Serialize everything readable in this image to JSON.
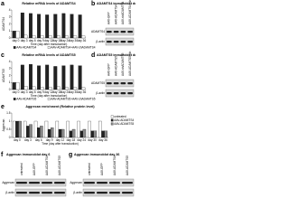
{
  "chart_data": [
    {
      "type": "bar",
      "panel_label": "a",
      "title": "Relative mRNA levels of ADAMTS4",
      "y_label": "ADAMTS4",
      "x_label": "Time (day after transduction)",
      "categories": [
        "day 0",
        "day 3",
        "day 6",
        "day 9",
        "day 12",
        "day 18",
        "day 24",
        "day 30",
        "day 36"
      ],
      "series": [
        {
          "name": "AAV-ADAMTS4",
          "color": "#222222",
          "values": [
            1,
            3.6,
            3.5,
            3.4,
            3.3,
            3.4,
            3.5,
            3.4,
            3.3
          ]
        },
        {
          "name": "AAV-ADAMTS4+AAV-shADAMTS4",
          "color": "#ffffff",
          "values": [
            1,
            0.4,
            0.3,
            0.3,
            0.3,
            0.3,
            0.3,
            0.3,
            0.3
          ]
        }
      ],
      "ylim": [
        0,
        4
      ],
      "yticks": [
        0,
        1,
        2,
        3,
        4
      ]
    },
    {
      "type": "bar",
      "panel_label": "c",
      "title": "Relative mRNA levels of ADAMTS5",
      "y_label": "ADAMTS5",
      "x_label": "Time (day after transduction)",
      "categories": [
        "day 0",
        "day 3",
        "day 6",
        "day 9",
        "day 12",
        "day 18",
        "day 24",
        "day 30",
        "day 36"
      ],
      "series": [
        {
          "name": "AAV-ADAMTS5",
          "color": "#222222",
          "values": [
            1,
            3.5,
            3.6,
            3.4,
            3.5,
            3.3,
            3.4,
            3.5,
            3.4
          ]
        },
        {
          "name": "AAV-ADAMTS5+AAV-shADAMTS5",
          "color": "#ffffff",
          "values": [
            1,
            0.5,
            0.4,
            0.3,
            0.3,
            0.4,
            0.3,
            0.3,
            0.3
          ]
        }
      ],
      "ylim": [
        0,
        4
      ],
      "yticks": [
        0,
        1,
        2,
        3,
        4
      ]
    },
    {
      "type": "bar",
      "panel_label": "e",
      "title": "Aggrecan enrichment (Relative protein level)",
      "y_label": "Aggrecan",
      "x_label": "Time (day after transduction)",
      "categories": [
        "day 0",
        "day 3",
        "day 6",
        "day 9",
        "day 12",
        "day 18",
        "day 24",
        "day 30",
        "day 36"
      ],
      "series": [
        {
          "name": "untreated",
          "color": "#ffffff",
          "values": [
            1,
            1,
            1,
            1,
            1,
            1,
            1,
            1,
            1
          ]
        },
        {
          "name": "AAV-ADAMTS4",
          "color": "#222222",
          "values": [
            1,
            0.7,
            0.6,
            0.5,
            0.5,
            0.4,
            0.4,
            0.4,
            0.4
          ]
        },
        {
          "name": "AAV-ADAMTS5",
          "color": "#888888",
          "values": [
            1,
            0.8,
            0.7,
            0.6,
            0.5,
            0.5,
            0.5,
            0.4,
            0.4
          ]
        }
      ],
      "ylim": [
        0,
        1.5
      ],
      "yticks": [
        0,
        0.5,
        1,
        1.5
      ]
    }
  ],
  "blots": [
    {
      "panel_label": "b",
      "title": "ADAMTS4 immunoblot day 6",
      "lanes": [
        "AAV-GFP",
        "AAV-ADAMTS4",
        "AAV-shADAMTS4",
        "AAV-ADAMTS4+sh"
      ],
      "bands": [
        "ADAMTS4",
        "β-actin"
      ]
    },
    {
      "panel_label": "d",
      "title": "ADAMTS5 immunoblot day 6",
      "lanes": [
        "AAV-GFP",
        "AAV-ADAMTS5",
        "AAV-shADAMTS5",
        "AAV-ADAMTS5+sh"
      ],
      "bands": [
        "ADAMTS5",
        "β-actin"
      ]
    },
    {
      "panel_label": "f",
      "title": "Aggrecan immunoblot day 6",
      "lanes": [
        "untreated",
        "AAV-GFP",
        "AAV-ADAMTS4",
        "AAV-ADAMTS5"
      ],
      "bands": [
        "Aggrecan",
        "β-actin"
      ]
    },
    {
      "panel_label": "g",
      "title": "Aggrecan immunoblot day 36",
      "lanes": [
        "untreated",
        "AAV-GFP",
        "AAV-ADAMTS4",
        "AAV-ADAMTS5"
      ],
      "bands": [
        "Aggrecan",
        "β-actin"
      ]
    }
  ]
}
